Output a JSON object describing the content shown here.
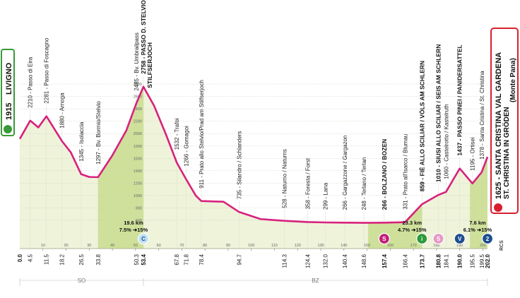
{
  "chart_data": {
    "type": "area",
    "title": "",
    "xlabel": "",
    "ylabel": "",
    "xlim": [
      0,
      202
    ],
    "ylim": [
      600,
      2900
    ],
    "y_ticks": [
      2800,
      2600,
      2400,
      2200,
      2000,
      1800,
      1600,
      1400,
      1200,
      1000,
      800,
      600
    ],
    "profile": [
      {
        "x": 0,
        "y": 1915
      },
      {
        "x": 4.5,
        "y": 2210
      },
      {
        "x": 8,
        "y": 2100
      },
      {
        "x": 11.5,
        "y": 2281
      },
      {
        "x": 18.2,
        "y": 1880
      },
      {
        "x": 22,
        "y": 1700
      },
      {
        "x": 26.5,
        "y": 1345
      },
      {
        "x": 30,
        "y": 1300
      },
      {
        "x": 33.8,
        "y": 1297
      },
      {
        "x": 40,
        "y": 1650
      },
      {
        "x": 46,
        "y": 2050
      },
      {
        "x": 50.3,
        "y": 2485
      },
      {
        "x": 53.4,
        "y": 2758
      },
      {
        "x": 58,
        "y": 2450
      },
      {
        "x": 63,
        "y": 2000
      },
      {
        "x": 67.8,
        "y": 1532
      },
      {
        "x": 71.8,
        "y": 1266
      },
      {
        "x": 76,
        "y": 1000
      },
      {
        "x": 78.4,
        "y": 911
      },
      {
        "x": 88,
        "y": 900
      },
      {
        "x": 94.7,
        "y": 735
      },
      {
        "x": 104,
        "y": 620
      },
      {
        "x": 114.3,
        "y": 528
      },
      {
        "x": 120,
        "y": 430
      },
      {
        "x": 124.4,
        "y": 358
      },
      {
        "x": 132,
        "y": 299
      },
      {
        "x": 140.4,
        "y": 266
      },
      {
        "x": 148.6,
        "y": 248
      },
      {
        "x": 157.4,
        "y": 266
      },
      {
        "x": 166.4,
        "y": 331
      },
      {
        "x": 173.7,
        "y": 859
      },
      {
        "x": 180.8,
        "y": 1010
      },
      {
        "x": 184.1,
        "y": 1060
      },
      {
        "x": 190.0,
        "y": 1437
      },
      {
        "x": 195.5,
        "y": 1195
      },
      {
        "x": 199.5,
        "y": 1378
      },
      {
        "x": 202,
        "y": 1625
      }
    ],
    "waypoint_labels": [
      {
        "km": 4.5,
        "text": "2210 - Passo di Eira",
        "bold": false
      },
      {
        "km": 11.5,
        "text": "2281 - Passo di Foscagno",
        "bold": false
      },
      {
        "km": 18.2,
        "text": "1880 - Arnoga",
        "bold": false
      },
      {
        "km": 26.5,
        "text": "1345 - Isolaccia",
        "bold": false
      },
      {
        "km": 33.8,
        "text": "1297 - Bv. Bormio/Stelvio",
        "bold": false
      },
      {
        "km": 50.3,
        "text": "2485 - Bv. Umbrailpass",
        "bold": false
      },
      {
        "km": 53.4,
        "text": "2758 - PASSO D. STELVIO",
        "bold": true,
        "line2": "STILFSERJOCH"
      },
      {
        "km": 67.8,
        "text": "1532 - Trafoi",
        "bold": false
      },
      {
        "km": 71.8,
        "text": "1266 - Gomagoi",
        "bold": false
      },
      {
        "km": 78.4,
        "text": "911 - Prato allo Stelvio/Prad am Stilfserjoch",
        "bold": false
      },
      {
        "km": 94.7,
        "text": "735 - Silandro / Schlanders",
        "bold": false
      },
      {
        "km": 114.3,
        "text": "528 - Naturno / Naturns",
        "bold": false
      },
      {
        "km": 124.4,
        "text": "358 - Foresta / Forst",
        "bold": false
      },
      {
        "km": 132.0,
        "text": "299 - Lana",
        "bold": false
      },
      {
        "km": 140.4,
        "text": "266 - Gargazzone / Gargazon",
        "bold": false
      },
      {
        "km": 148.6,
        "text": "248 - Terlano / Terlan",
        "bold": false
      },
      {
        "km": 157.4,
        "text": "266 - BOLZANO / BOZEN",
        "bold": true
      },
      {
        "km": 166.4,
        "text": "331 - Prato all'Isarco / Blumau",
        "bold": false
      },
      {
        "km": 173.7,
        "text": "859 - FIÈ ALLO SCILIAR / VÖLS AM SCHLERN",
        "bold": true
      },
      {
        "km": 180.8,
        "text": "1010 - SIUSI ALLO SCILIAR / SEIS AM SCHLERN",
        "bold": true
      },
      {
        "km": 184.1,
        "text": "1060 - Castelrotto / Kastelruth",
        "bold": false
      },
      {
        "km": 190.0,
        "text": "1437 - PASSO PINEI / PANIDERSATTEL",
        "bold": true
      },
      {
        "km": 195.5,
        "text": "1195 - Ortisei",
        "bold": false
      },
      {
        "km": 199.5,
        "text": "1378 - Santa Cristina / St. Christina",
        "bold": false
      }
    ],
    "km_ticks": [
      {
        "km": 0.0,
        "label": "0.0",
        "bold": true
      },
      {
        "km": 4.5,
        "label": "4.5"
      },
      {
        "km": 11.5,
        "label": "11.5"
      },
      {
        "km": 18.2,
        "label": "18.2"
      },
      {
        "km": 26.5,
        "label": "26.5"
      },
      {
        "km": 33.8,
        "label": "33.8"
      },
      {
        "km": 50.3,
        "label": "50.3"
      },
      {
        "km": 53.4,
        "label": "53.4",
        "bold": true
      },
      {
        "km": 67.8,
        "label": "67.8"
      },
      {
        "km": 71.8,
        "label": "71.8"
      },
      {
        "km": 78.4,
        "label": "78.4"
      },
      {
        "km": 94.7,
        "label": "94.7"
      },
      {
        "km": 114.3,
        "label": "114.3"
      },
      {
        "km": 124.4,
        "label": "124.4"
      },
      {
        "km": 132.0,
        "label": "132.0"
      },
      {
        "km": 140.4,
        "label": "140.4"
      },
      {
        "km": 148.6,
        "label": "148.6"
      },
      {
        "km": 157.4,
        "label": "157.4",
        "bold": true
      },
      {
        "km": 166.4,
        "label": "166.4"
      },
      {
        "km": 173.7,
        "label": "173.7",
        "bold": true
      },
      {
        "km": 180.8,
        "label": "180.8",
        "bold": true
      },
      {
        "km": 184.1,
        "label": "184.1"
      },
      {
        "km": 190.0,
        "label": "190.0",
        "bold": true
      },
      {
        "km": 195.5,
        "label": "195.5"
      },
      {
        "km": 199.5,
        "label": "199.5"
      },
      {
        "km": 202.0,
        "label": "202.0",
        "bold": true
      }
    ],
    "distance_markers": [
      10,
      20,
      30,
      40,
      50,
      60,
      70,
      80,
      90,
      100,
      110,
      120,
      130,
      140,
      150,
      160,
      170,
      180,
      190,
      200
    ],
    "climbs": [
      {
        "start_km": 33.8,
        "end_km": 53.4,
        "length": "19.6 km",
        "avg": "7.5%",
        "max": "15%"
      },
      {
        "start_km": 150.4,
        "end_km": 173.7,
        "length": "23.3 km",
        "avg": "4.7%",
        "max": "15%"
      },
      {
        "start_km": 194.4,
        "end_km": 202.0,
        "length": "7.6 km",
        "avg": "6.1%",
        "max": "15%"
      }
    ],
    "markers": [
      {
        "km": 53.4,
        "letter": "C",
        "kind": "cima-coppi"
      },
      {
        "km": 157.4,
        "letter": "S",
        "kind": "sprint"
      },
      {
        "km": 173.7,
        "letter": "i",
        "kind": "intermediate"
      },
      {
        "km": 180.8,
        "letter": "S",
        "kind": "sprint-light"
      },
      {
        "km": 190.0,
        "letter": "V",
        "kind": "kom"
      },
      {
        "km": 202.0,
        "letter": "2",
        "kind": "kom-finish"
      }
    ],
    "provinces": [
      {
        "label": "SO",
        "from_km": 0,
        "to_km": 53.4
      },
      {
        "label": "BZ",
        "from_km": 53.4,
        "to_km": 202
      }
    ],
    "start": {
      "altitude": "1915",
      "name": "LIVIGNO"
    },
    "finish": {
      "line1": "1625 - SANTA CRISTINA VAL GARDENA",
      "line2": "ST. CHRISTINA IN GRÖDEN",
      "line3": "(Monte Pana)"
    },
    "logo_text": "RCS",
    "colors": {
      "profile_line": "#d8217d",
      "fill_light": "#eef3da",
      "fill_climb": "#cfe09a",
      "grid": "#c9d0b8",
      "start_green": "#3a9a3a",
      "finish_red": "#d81f2d",
      "marker_sprint": "#c21f78",
      "marker_kom": "#1f4f8f",
      "marker_coppi": "#bfe0f0",
      "marker_green": "#2e9a3a"
    }
  }
}
